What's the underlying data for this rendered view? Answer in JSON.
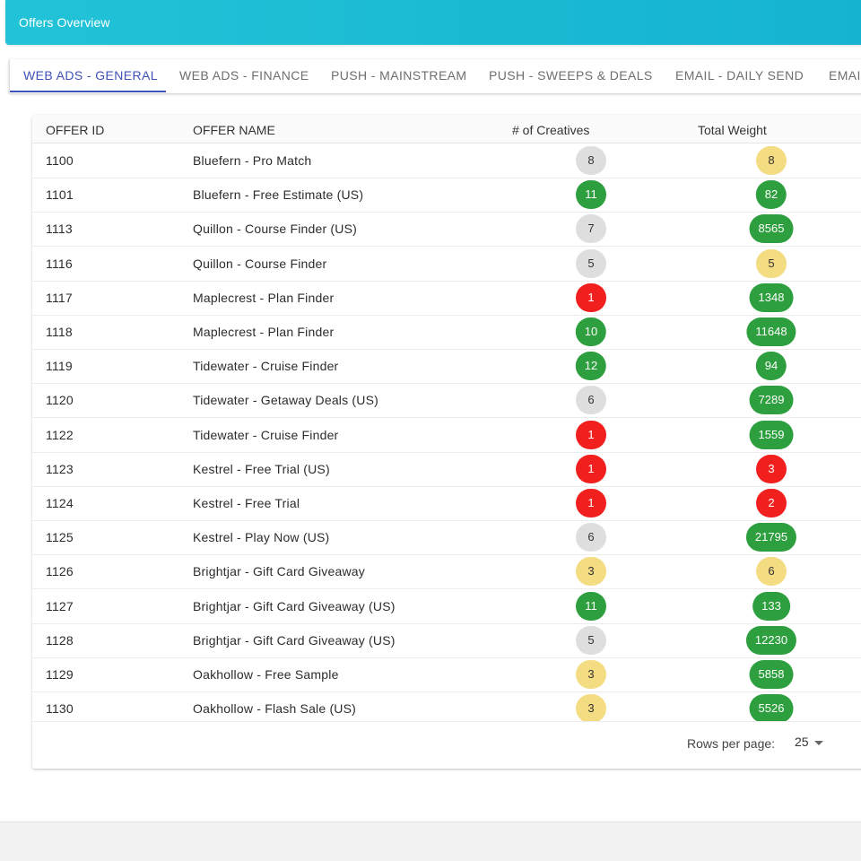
{
  "header": {
    "title": "Offers Overview"
  },
  "tabs": [
    {
      "label": "WEB ADS - GENERAL",
      "active": true
    },
    {
      "label": "WEB ADS - FINANCE",
      "active": false
    },
    {
      "label": "PUSH - MAINSTREAM",
      "active": false
    },
    {
      "label": "PUSH - SWEEPS & DEALS",
      "active": false
    },
    {
      "label": "EMAIL - DAILY SEND",
      "active": false
    },
    {
      "label": "EMAI",
      "active": false
    }
  ],
  "table": {
    "columns": [
      "OFFER ID",
      "OFFER NAME",
      "# of Creatives",
      "Total Weight"
    ],
    "rows": [
      {
        "id": "1100",
        "name": "Bluefern - Pro Match",
        "creatives": "8",
        "creatives_status": "grey",
        "weight": "8",
        "weight_status": "yellow"
      },
      {
        "id": "1101",
        "name": "Bluefern - Free Estimate (US)",
        "creatives": "11",
        "creatives_status": "green",
        "weight": "82",
        "weight_status": "green"
      },
      {
        "id": "1113",
        "name": "Quillon - Course Finder (US)",
        "creatives": "7",
        "creatives_status": "grey",
        "weight": "8565",
        "weight_status": "green"
      },
      {
        "id": "1116",
        "name": "Quillon - Course Finder",
        "creatives": "5",
        "creatives_status": "grey",
        "weight": "5",
        "weight_status": "yellow"
      },
      {
        "id": "1117",
        "name": "Maplecrest - Plan Finder",
        "creatives": "1",
        "creatives_status": "red",
        "weight": "1348",
        "weight_status": "green"
      },
      {
        "id": "1118",
        "name": "Maplecrest - Plan Finder",
        "creatives": "10",
        "creatives_status": "green",
        "weight": "11648",
        "weight_status": "green"
      },
      {
        "id": "1119",
        "name": "Tidewater - Cruise Finder",
        "creatives": "12",
        "creatives_status": "green",
        "weight": "94",
        "weight_status": "green"
      },
      {
        "id": "1120",
        "name": "Tidewater - Getaway Deals (US)",
        "creatives": "6",
        "creatives_status": "grey",
        "weight": "7289",
        "weight_status": "green"
      },
      {
        "id": "1122",
        "name": "Tidewater - Cruise Finder",
        "creatives": "1",
        "creatives_status": "red",
        "weight": "1559",
        "weight_status": "green"
      },
      {
        "id": "1123",
        "name": "Kestrel - Free Trial (US)",
        "creatives": "1",
        "creatives_status": "red",
        "weight": "3",
        "weight_status": "red"
      },
      {
        "id": "1124",
        "name": "Kestrel - Free Trial",
        "creatives": "1",
        "creatives_status": "red",
        "weight": "2",
        "weight_status": "red"
      },
      {
        "id": "1125",
        "name": "Kestrel - Play Now (US)",
        "creatives": "6",
        "creatives_status": "grey",
        "weight": "21795",
        "weight_status": "green"
      },
      {
        "id": "1126",
        "name": "Brightjar - Gift Card Giveaway",
        "creatives": "3",
        "creatives_status": "yellow",
        "weight": "6",
        "weight_status": "yellow"
      },
      {
        "id": "1127",
        "name": "Brightjar - Gift Card Giveaway (US)",
        "creatives": "11",
        "creatives_status": "green",
        "weight": "133",
        "weight_status": "green"
      },
      {
        "id": "1128",
        "name": "Brightjar - Gift Card Giveaway (US)",
        "creatives": "5",
        "creatives_status": "grey",
        "weight": "12230",
        "weight_status": "green"
      },
      {
        "id": "1129",
        "name": "Oakhollow - Free Sample",
        "creatives": "3",
        "creatives_status": "yellow",
        "weight": "5858",
        "weight_status": "green"
      },
      {
        "id": "1130",
        "name": "Oakhollow - Flash Sale (US)",
        "creatives": "3",
        "creatives_status": "yellow",
        "weight": "5526",
        "weight_status": "green"
      }
    ]
  },
  "pagination": {
    "rows_per_page_label": "Rows per page:",
    "rows_per_page_value": "25"
  },
  "colors": {
    "header": "#1bbcd4",
    "active_tab": "#3f51b5",
    "status_green": "#2e9f3e",
    "status_red": "#f21f1f",
    "status_yellow": "#f4dc82",
    "status_grey": "#dedede"
  }
}
